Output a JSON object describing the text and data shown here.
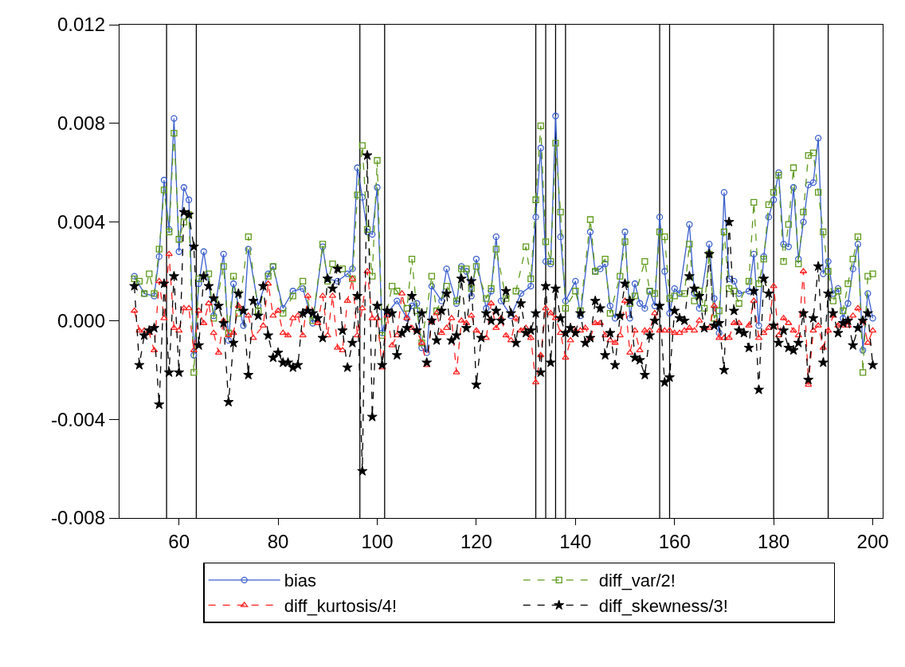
{
  "chart_data": {
    "type": "line",
    "xlim": [
      48,
      202
    ],
    "xticks": [
      60,
      80,
      100,
      120,
      140,
      160,
      180,
      200
    ],
    "ylim": [
      -0.008,
      0.012
    ],
    "yticks": [
      {
        "value": -0.008,
        "label": "-0.008"
      },
      {
        "value": -0.004,
        "label": "-0.004"
      },
      {
        "value": 0,
        "label": "0.000"
      },
      {
        "value": 0.004,
        "label": "0.004"
      },
      {
        "value": 0.008,
        "label": "0.008"
      },
      {
        "value": 0.012,
        "label": "0.012"
      }
    ],
    "grid": false,
    "legend": "bottom",
    "ref_lines": [
      {
        "axis": "x",
        "value": 57.5,
        "color": "#000000"
      },
      {
        "axis": "x",
        "value": 63.5,
        "color": "#000000"
      },
      {
        "axis": "x",
        "value": 96.5,
        "color": "#000000"
      },
      {
        "axis": "x",
        "value": 101.5,
        "color": "#000000"
      },
      {
        "axis": "x",
        "value": 132,
        "color": "#000000"
      },
      {
        "axis": "x",
        "value": 134,
        "color": "#000000"
      },
      {
        "axis": "x",
        "value": 136,
        "color": "#000000"
      },
      {
        "axis": "x",
        "value": 138,
        "color": "#000000"
      },
      {
        "axis": "x",
        "value": 157,
        "color": "#000000"
      },
      {
        "axis": "x",
        "value": 159,
        "color": "#000000"
      },
      {
        "axis": "x",
        "value": 180,
        "color": "#000000"
      },
      {
        "axis": "x",
        "value": 191,
        "color": "#000000"
      }
    ],
    "series": [
      {
        "name": "bias",
        "color": "#3a5fcd",
        "marker": "circle",
        "line_style": "solid",
        "x": [
          51,
          53,
          55,
          56,
          57,
          58,
          59,
          60,
          61,
          62,
          63,
          64,
          65,
          67,
          69,
          70,
          71,
          73,
          74,
          76,
          78,
          79,
          81,
          83,
          85,
          87,
          89,
          90,
          92,
          94,
          95,
          96,
          97,
          98,
          99,
          100,
          101,
          102,
          104,
          106,
          107,
          108,
          109,
          110,
          111,
          113,
          114,
          116,
          117,
          118,
          119,
          120,
          122,
          123,
          124,
          125,
          127,
          129,
          131,
          132,
          133,
          134,
          135,
          136,
          137,
          138,
          140,
          141,
          143,
          144,
          145,
          146,
          147,
          148,
          150,
          151,
          152,
          153,
          154,
          155,
          156,
          157,
          158,
          159,
          160,
          161,
          163,
          164,
          165,
          167,
          168,
          169,
          170,
          171,
          172,
          173,
          175,
          176,
          177,
          178,
          179,
          180,
          181,
          182,
          183,
          184,
          185,
          186,
          187,
          188,
          189,
          190,
          191,
          192,
          193,
          194,
          195,
          196,
          197,
          198,
          199,
          200
        ],
        "values": [
          0.0018,
          0.0011,
          0.001,
          0.0026,
          0.0057,
          0.0037,
          0.0082,
          0.0028,
          0.0054,
          0.0049,
          -0.0014,
          0.0015,
          0.0028,
          0.0002,
          0.0027,
          -0.0008,
          0.0015,
          -0.0002,
          0.0029,
          0.0006,
          0.0019,
          0.0022,
          0.0005,
          0.0012,
          0.0013,
          -0.0001,
          0.003,
          0.0017,
          0.0016,
          0.0019,
          0.0021,
          0.0062,
          0.005,
          0.0036,
          0.0035,
          0.0054,
          -0.0005,
          0.0003,
          0.0008,
          0.0001,
          0.0006,
          0.0007,
          -0.0011,
          -0.0013,
          0.0014,
          0.0008,
          0.0021,
          0.0007,
          0.0022,
          0.002,
          0.001,
          0.0025,
          0.0005,
          0.0012,
          0.0034,
          0.0008,
          0.0002,
          0.0011,
          0.0014,
          0.0042,
          0.007,
          0.0024,
          0.0023,
          0.0083,
          0.0034,
          0.0008,
          0.0016,
          0.0002,
          0.0036,
          0.002,
          0.0021,
          0.0023,
          0.0006,
          0.0001,
          0.0036,
          0.0001,
          0.0015,
          0.0007,
          0.0005,
          0.0012,
          0.0006,
          0.0042,
          0.002,
          0.0003,
          0.0013,
          0.0011,
          0.0039,
          0.0011,
          0.0005,
          0.0031,
          0.0009,
          -0.0005,
          0.0052,
          0.0017,
          0.0016,
          0.0011,
          0.0012,
          0.0027,
          -0.0002,
          0.0026,
          0.0042,
          0.0049,
          0.006,
          0.0031,
          0.003,
          0.0054,
          0.0025,
          0.004,
          0.0055,
          0.0056,
          0.0074,
          0.0019,
          0.0024,
          0.0011,
          0.0013,
          0.0001,
          0.0007,
          0.0021,
          0.0031,
          -0.0012,
          0.0011,
          0.0001
        ]
      },
      {
        "name": "diff_var/2!",
        "color": "#5f9a1c",
        "marker": "square",
        "line_style": "dashed",
        "x": [
          51,
          52,
          53,
          54,
          55,
          56,
          57,
          58,
          59,
          60,
          61,
          62,
          63,
          64,
          66,
          67,
          69,
          70,
          71,
          72,
          74,
          76,
          78,
          79,
          81,
          83,
          85,
          87,
          89,
          90,
          91,
          93,
          95,
          96,
          97,
          98,
          99,
          100,
          101,
          103,
          104,
          106,
          107,
          108,
          109,
          111,
          112,
          114,
          116,
          117,
          118,
          119,
          120,
          122,
          123,
          124,
          126,
          128,
          130,
          131,
          132,
          133,
          134,
          135,
          136,
          137,
          138,
          140,
          141,
          143,
          144,
          146,
          147,
          149,
          150,
          151,
          152,
          154,
          155,
          156,
          157,
          158,
          159,
          160,
          162,
          163,
          164,
          165,
          166,
          167,
          168,
          169,
          170,
          171,
          172,
          173,
          175,
          176,
          177,
          178,
          179,
          180,
          181,
          182,
          183,
          184,
          185,
          186,
          187,
          188,
          189,
          190,
          191,
          192,
          193,
          194,
          195,
          196,
          197,
          198,
          199,
          200
        ],
        "values": [
          0.0017,
          0.0016,
          0.0011,
          0.0019,
          0.0011,
          0.0029,
          0.0053,
          0.0036,
          0.0076,
          0.0033,
          0.004,
          0.0043,
          -0.0021,
          0.0017,
          0.0019,
          0.0001,
          0.0022,
          -0.0005,
          0.0018,
          0.0003,
          0.0034,
          0.0004,
          0.0018,
          0.0022,
          0.0003,
          0.001,
          0.0016,
          0.0,
          0.0031,
          0.0016,
          0.0023,
          0.0021,
          0.0017,
          0.0051,
          0.0071,
          0.0037,
          0.0018,
          0.0065,
          -0.0006,
          0.0014,
          0.0012,
          0.0005,
          0.0025,
          0.0004,
          -0.0009,
          0.0018,
          0.0004,
          0.0014,
          0.0008,
          0.0021,
          0.0021,
          0.0013,
          0.0022,
          0.0009,
          0.0013,
          0.0029,
          0.0009,
          0.0012,
          0.003,
          0.0017,
          0.0049,
          0.0079,
          0.0032,
          0.0024,
          0.0072,
          0.0044,
          0.0005,
          0.0012,
          0.0004,
          0.0041,
          0.002,
          0.0025,
          0.0003,
          0.0018,
          0.0032,
          0.0007,
          0.001,
          0.0024,
          0.0012,
          0.0011,
          0.0036,
          0.0034,
          0.0009,
          0.001,
          0.0011,
          0.0031,
          0.0008,
          0.0012,
          0.0005,
          0.0027,
          0.0001,
          0.0004,
          0.0036,
          0.0013,
          0.0012,
          0.0007,
          0.0016,
          0.0048,
          0.0015,
          0.0025,
          0.0047,
          0.0052,
          0.0059,
          0.0024,
          0.0039,
          0.0062,
          0.0023,
          0.0044,
          0.0067,
          0.0068,
          0.0052,
          0.0036,
          0.002,
          0.0008,
          0.0012,
          0.0004,
          0.0015,
          0.0025,
          0.0034,
          -0.0021,
          0.0018,
          0.0019
        ]
      },
      {
        "name": "diff_kurtosis/4!",
        "color": "#ff2020",
        "marker": "triangle",
        "line_style": "dashed",
        "x": [
          51,
          52,
          53,
          54,
          55,
          56,
          57,
          58,
          59,
          60,
          61,
          62,
          63,
          64,
          65,
          66,
          67,
          68,
          69,
          70,
          71,
          72,
          74,
          75,
          77,
          78,
          79,
          80,
          81,
          82,
          83,
          84,
          85,
          86,
          88,
          89,
          90,
          91,
          92,
          93,
          94,
          95,
          96,
          97,
          98,
          99,
          100,
          101,
          102,
          103,
          104,
          105,
          106,
          107,
          108,
          109,
          110,
          111,
          112,
          113,
          114,
          115,
          116,
          117,
          118,
          119,
          120,
          122,
          123,
          124,
          125,
          126,
          127,
          128,
          129,
          130,
          131,
          132,
          133,
          134,
          135,
          136,
          137,
          138,
          139,
          140,
          141,
          142,
          143,
          144,
          145,
          146,
          147,
          148,
          149,
          150,
          151,
          152,
          153,
          154,
          155,
          156,
          157,
          158,
          159,
          160,
          161,
          162,
          163,
          164,
          165,
          166,
          167,
          168,
          169,
          170,
          171,
          172,
          173,
          175,
          176,
          177,
          178,
          179,
          180,
          181,
          182,
          183,
          184,
          185,
          186,
          187,
          188,
          189,
          190,
          191,
          192,
          193,
          194,
          195,
          196,
          197,
          198,
          199,
          200
        ],
        "values": [
          0.0004,
          -0.0004,
          -0.0004,
          -0.0005,
          -0.0012,
          0.0016,
          0.0001,
          0.0027,
          -0.0003,
          -0.0004,
          0.0005,
          0.0005,
          -0.0012,
          0.0004,
          -0.0001,
          0.0007,
          -0.0005,
          -0.0013,
          0.0,
          -0.0006,
          -0.0005,
          0.0006,
          0.0002,
          -0.0007,
          -0.0002,
          0.0015,
          0.0002,
          0.0004,
          -0.0005,
          -0.0006,
          0.0001,
          0.0002,
          -0.0006,
          0.001,
          -0.0001,
          0.001,
          -0.0006,
          0.001,
          -0.0011,
          -0.0012,
          0.0008,
          0.0017,
          -0.0006,
          0.0005,
          0.002,
          0.0001,
          0.0001,
          -0.0019,
          0.0002,
          -0.001,
          -0.0006,
          0.0011,
          0.0001,
          -0.0003,
          -0.0004,
          -0.0009,
          -0.0018,
          0.0,
          0.0003,
          -0.0005,
          -0.0003,
          0.0001,
          -0.0021,
          0.0,
          -0.0001,
          0.0002,
          -0.0004,
          -0.0007,
          0.0007,
          -0.0003,
          0.0001,
          -0.0006,
          -0.0008,
          0.0001,
          -0.0004,
          -0.0003,
          -0.0007,
          -0.0025,
          -0.0014,
          0.0005,
          0.0003,
          0.0001,
          -0.0005,
          -0.0015,
          -0.0008,
          -0.0004,
          -0.0004,
          -0.0003,
          -0.0007,
          -0.0001,
          -0.0001,
          -0.0006,
          -0.0008,
          -0.0009,
          -0.0006,
          0.0008,
          -0.0013,
          -0.0004,
          -0.0012,
          -0.0004,
          -0.0004,
          0.0003,
          -0.0004,
          -0.0004,
          -0.0004,
          -0.0005,
          -0.0005,
          -0.0004,
          -0.0003,
          -0.0004,
          0.0,
          -0.0003,
          -0.0003,
          0.0006,
          -0.0007,
          -0.0007,
          -0.0007,
          -0.0001,
          -0.0001,
          -0.0002,
          0.0008,
          -0.0007,
          -0.0005,
          -0.0003,
          0.0014,
          -0.0006,
          0.0001,
          -0.0001,
          -0.0004,
          -0.0006,
          0.002,
          -0.0026,
          -0.0004,
          -0.0002,
          -0.0011,
          -0.0004,
          0.0002,
          -0.0002,
          -0.0002,
          -0.0002,
          0.0002,
          0.0005,
          0.0,
          -0.0009,
          -0.0004
        ]
      },
      {
        "name": "diff_skewness/3!",
        "color": "#000000",
        "marker": "star",
        "line_style": "dashed",
        "x": [
          51,
          52,
          53,
          54,
          55,
          56,
          57,
          58,
          59,
          60,
          61,
          62,
          63,
          64,
          65,
          66,
          67,
          68,
          69,
          70,
          71,
          72,
          73,
          74,
          75,
          76,
          77,
          78,
          79,
          80,
          81,
          82,
          83,
          84,
          85,
          86,
          87,
          88,
          89,
          90,
          91,
          92,
          93,
          94,
          95,
          96,
          97,
          98,
          99,
          100,
          101,
          102,
          103,
          104,
          105,
          106,
          107,
          108,
          109,
          110,
          111,
          112,
          113,
          114,
          115,
          116,
          117,
          118,
          119,
          120,
          121,
          122,
          123,
          124,
          125,
          126,
          127,
          128,
          129,
          130,
          131,
          132,
          133,
          134,
          135,
          136,
          137,
          138,
          139,
          140,
          141,
          142,
          143,
          144,
          145,
          146,
          147,
          148,
          149,
          150,
          151,
          152,
          153,
          154,
          155,
          156,
          157,
          158,
          159,
          160,
          161,
          162,
          163,
          164,
          165,
          166,
          167,
          168,
          169,
          170,
          171,
          172,
          173,
          174,
          175,
          176,
          177,
          178,
          179,
          180,
          181,
          182,
          183,
          184,
          185,
          186,
          187,
          188,
          189,
          190,
          191,
          192,
          193,
          194,
          195,
          196,
          197,
          198,
          199,
          200
        ],
        "values": [
          0.0014,
          -0.0018,
          -0.0006,
          -0.0004,
          -0.0003,
          -0.0034,
          0.0015,
          -0.0021,
          0.0018,
          -0.0021,
          0.0044,
          0.0043,
          0.003,
          -0.001,
          0.0018,
          0.0014,
          0.0009,
          0.0006,
          -0.0001,
          -0.0033,
          -0.0009,
          0.0011,
          0.0004,
          -0.0022,
          0.0008,
          0.0002,
          0.0014,
          -0.0006,
          -0.0015,
          -0.0013,
          -0.0017,
          -0.0017,
          -0.0019,
          -0.0018,
          0.0003,
          0.0004,
          0.0003,
          0.0001,
          -0.0007,
          0.0017,
          0.0013,
          0.0021,
          -0.0004,
          -0.0019,
          -0.0009,
          0.001,
          -0.0061,
          0.0067,
          -0.0039,
          0.0006,
          -0.0018,
          0.0004,
          0.0003,
          -0.0014,
          -0.0005,
          -0.0003,
          0.001,
          -0.0004,
          0.0003,
          -0.0017,
          0.0,
          -0.0008,
          0.0004,
          0.0011,
          -0.0008,
          -0.0006,
          0.0017,
          -0.0003,
          0.0016,
          -0.0026,
          -0.0007,
          0.0003,
          0.0,
          0.0004,
          0.0,
          0.0012,
          0.0003,
          -0.0009,
          0.0007,
          -0.0005,
          -0.0004,
          0.0003,
          -0.0021,
          0.0014,
          -0.0017,
          0.0013,
          0.0001,
          -0.0005,
          -0.0003,
          -0.0005,
          0.0003,
          -0.0009,
          -0.0007,
          0.0008,
          0.0005,
          -0.0014,
          -0.0005,
          -0.0018,
          0.0002,
          0.0015,
          0.0008,
          -0.0015,
          -0.0016,
          -0.0022,
          -0.0006,
          0.0,
          0.0006,
          -0.0025,
          -0.0023,
          0.0004,
          0.0001,
          0.0,
          0.0018,
          0.0013,
          0.001,
          -0.0003,
          0.0027,
          -0.0002,
          -0.0001,
          -0.002,
          0.004,
          0.0004,
          -0.0004,
          -0.0005,
          -0.0011,
          0.0012,
          -0.0028,
          0.0017,
          0.0011,
          -0.0002,
          -0.0009,
          -0.0004,
          -0.0011,
          -0.0012,
          -0.0009,
          0.0003,
          -0.0024,
          0.0001,
          0.0022,
          -0.0017,
          0.0011,
          0.0003,
          -0.0005,
          -0.0001,
          0.0,
          -0.001,
          -0.0003,
          0.0,
          0.0003,
          -0.0018
        ]
      }
    ]
  }
}
